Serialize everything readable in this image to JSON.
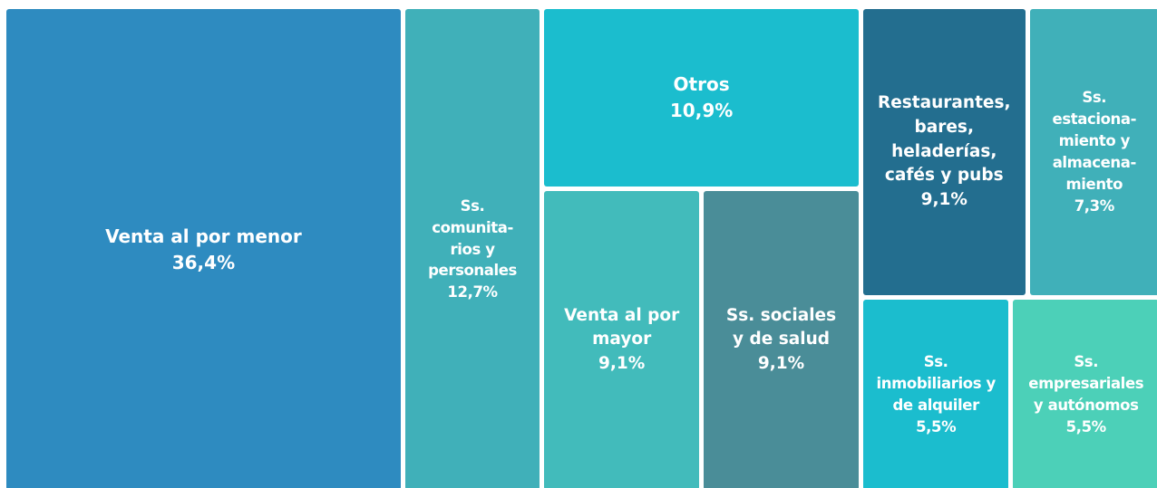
{
  "chart_data": {
    "type": "treemap",
    "categories": [
      "Venta al por menor",
      "Ss.\ncomunita-\nrios y\npersonales",
      "Otros",
      "Venta al por\nmayor",
      "Ss. sociales\ny de salud",
      "Restaurantes,\nbares,\nheladerías,\ncafés y pubs",
      "Ss.\nestaciona-\nmiento y\nalmacena-\nmiento",
      "Ss.\ninmobiliarios y\nde alquiler",
      "Ss.\nempresariales\ny autónomos"
    ],
    "values": [
      36.4,
      12.7,
      10.9,
      9.1,
      9.1,
      9.1,
      7.3,
      5.5,
      5.5
    ],
    "value_labels": [
      "36,4%",
      "12,7%",
      "10,9%",
      "9,1%",
      "9,1%",
      "9,1%",
      "7,3%",
      "5,5%",
      "5,5%"
    ],
    "colors": [
      "#2e8bc0",
      "#40b0b9",
      "#1bbdce",
      "#42bbbb",
      "#4a8d98",
      "#236e8f",
      "#40b0b9",
      "#1bbdce",
      "#4cd0b8"
    ]
  }
}
